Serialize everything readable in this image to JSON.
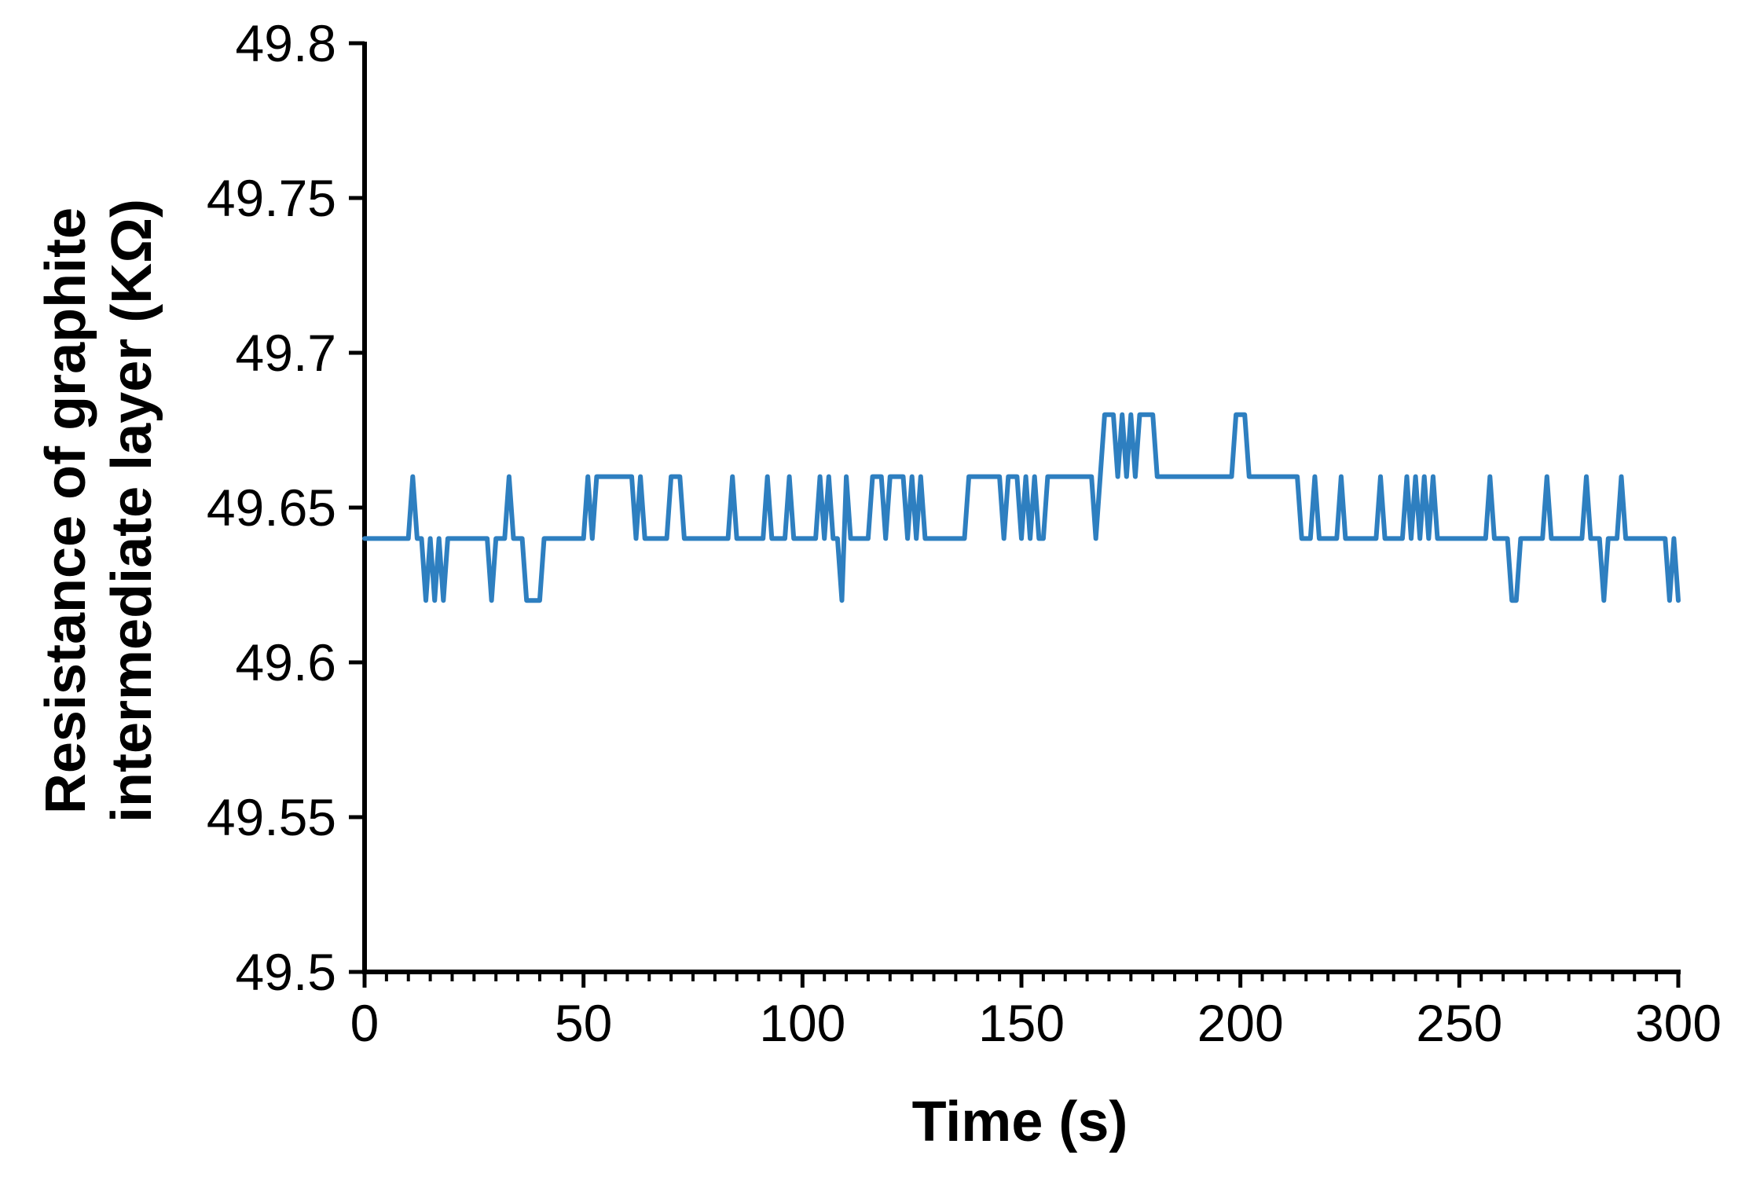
{
  "chart_data": {
    "type": "line",
    "title": "",
    "xlabel": "Time (s)",
    "ylabel": [
      "Resistance  of  graphite",
      "intermediate  layer (KΩ)"
    ],
    "xlim": [
      0,
      300
    ],
    "ylim": [
      49.5,
      49.8
    ],
    "x_ticks": [
      0,
      50,
      100,
      150,
      200,
      250,
      300
    ],
    "x_tick_labels": [
      "0",
      "50",
      "100",
      "150",
      "200",
      "250",
      "300"
    ],
    "x_minor_step": 5,
    "y_ticks": [
      49.5,
      49.55,
      49.6,
      49.65,
      49.7,
      49.75,
      49.8
    ],
    "y_tick_labels": [
      "49.5",
      "49.55",
      "49.6",
      "49.65",
      "49.7",
      "49.75",
      "49.8"
    ],
    "grid": false,
    "legend": "none",
    "colors": {
      "series": "#2e7fc0",
      "axis": "#000000"
    },
    "series": [
      {
        "name": "",
        "points": [
          [
            0,
            49.64
          ],
          [
            10,
            49.64
          ],
          [
            11,
            49.66
          ],
          [
            12,
            49.64
          ],
          [
            13,
            49.64
          ],
          [
            14,
            49.62
          ],
          [
            15,
            49.64
          ],
          [
            16,
            49.62
          ],
          [
            17,
            49.64
          ],
          [
            18,
            49.62
          ],
          [
            19,
            49.64
          ],
          [
            28,
            49.64
          ],
          [
            29,
            49.62
          ],
          [
            30,
            49.64
          ],
          [
            32,
            49.64
          ],
          [
            33,
            49.66
          ],
          [
            34,
            49.64
          ],
          [
            36,
            49.64
          ],
          [
            37,
            49.62
          ],
          [
            40,
            49.62
          ],
          [
            41,
            49.64
          ],
          [
            50,
            49.64
          ],
          [
            51,
            49.66
          ],
          [
            52,
            49.64
          ],
          [
            53,
            49.66
          ],
          [
            61,
            49.66
          ],
          [
            62,
            49.64
          ],
          [
            63,
            49.66
          ],
          [
            64,
            49.64
          ],
          [
            69,
            49.64
          ],
          [
            70,
            49.66
          ],
          [
            72,
            49.66
          ],
          [
            73,
            49.64
          ],
          [
            83,
            49.64
          ],
          [
            84,
            49.66
          ],
          [
            85,
            49.64
          ],
          [
            91,
            49.64
          ],
          [
            92,
            49.66
          ],
          [
            93,
            49.64
          ],
          [
            96,
            49.64
          ],
          [
            97,
            49.66
          ],
          [
            98,
            49.64
          ],
          [
            103,
            49.64
          ],
          [
            104,
            49.66
          ],
          [
            105,
            49.64
          ],
          [
            106,
            49.66
          ],
          [
            107,
            49.64
          ],
          [
            108,
            49.64
          ],
          [
            109,
            49.62
          ],
          [
            110,
            49.66
          ],
          [
            111,
            49.64
          ],
          [
            115,
            49.64
          ],
          [
            116,
            49.66
          ],
          [
            118,
            49.66
          ],
          [
            119,
            49.64
          ],
          [
            120,
            49.66
          ],
          [
            123,
            49.66
          ],
          [
            124,
            49.64
          ],
          [
            125,
            49.66
          ],
          [
            126,
            49.64
          ],
          [
            127,
            49.66
          ],
          [
            128,
            49.64
          ],
          [
            137,
            49.64
          ],
          [
            138,
            49.66
          ],
          [
            145,
            49.66
          ],
          [
            146,
            49.64
          ],
          [
            147,
            49.66
          ],
          [
            149,
            49.66
          ],
          [
            150,
            49.64
          ],
          [
            151,
            49.66
          ],
          [
            152,
            49.64
          ],
          [
            153,
            49.66
          ],
          [
            154,
            49.64
          ],
          [
            155,
            49.64
          ],
          [
            156,
            49.66
          ],
          [
            166,
            49.66
          ],
          [
            167,
            49.64
          ],
          [
            168,
            49.66
          ],
          [
            169,
            49.68
          ],
          [
            171,
            49.68
          ],
          [
            172,
            49.66
          ],
          [
            173,
            49.68
          ],
          [
            174,
            49.66
          ],
          [
            175,
            49.68
          ],
          [
            176,
            49.66
          ],
          [
            177,
            49.68
          ],
          [
            180,
            49.68
          ],
          [
            181,
            49.66
          ],
          [
            198,
            49.66
          ],
          [
            199,
            49.68
          ],
          [
            201,
            49.68
          ],
          [
            202,
            49.66
          ],
          [
            213,
            49.66
          ],
          [
            214,
            49.64
          ],
          [
            216,
            49.64
          ],
          [
            217,
            49.66
          ],
          [
            218,
            49.64
          ],
          [
            222,
            49.64
          ],
          [
            223,
            49.66
          ],
          [
            224,
            49.64
          ],
          [
            231,
            49.64
          ],
          [
            232,
            49.66
          ],
          [
            233,
            49.64
          ],
          [
            237,
            49.64
          ],
          [
            238,
            49.66
          ],
          [
            239,
            49.64
          ],
          [
            240,
            49.66
          ],
          [
            241,
            49.64
          ],
          [
            242,
            49.66
          ],
          [
            243,
            49.64
          ],
          [
            244,
            49.66
          ],
          [
            245,
            49.64
          ],
          [
            256,
            49.64
          ],
          [
            257,
            49.66
          ],
          [
            258,
            49.64
          ],
          [
            261,
            49.64
          ],
          [
            262,
            49.62
          ],
          [
            263,
            49.62
          ],
          [
            264,
            49.64
          ],
          [
            269,
            49.64
          ],
          [
            270,
            49.66
          ],
          [
            271,
            49.64
          ],
          [
            278,
            49.64
          ],
          [
            279,
            49.66
          ],
          [
            280,
            49.64
          ],
          [
            282,
            49.64
          ],
          [
            283,
            49.62
          ],
          [
            284,
            49.64
          ],
          [
            286,
            49.64
          ],
          [
            287,
            49.66
          ],
          [
            288,
            49.64
          ],
          [
            297,
            49.64
          ],
          [
            298,
            49.62
          ],
          [
            299,
            49.64
          ],
          [
            300,
            49.62
          ]
        ]
      }
    ]
  }
}
